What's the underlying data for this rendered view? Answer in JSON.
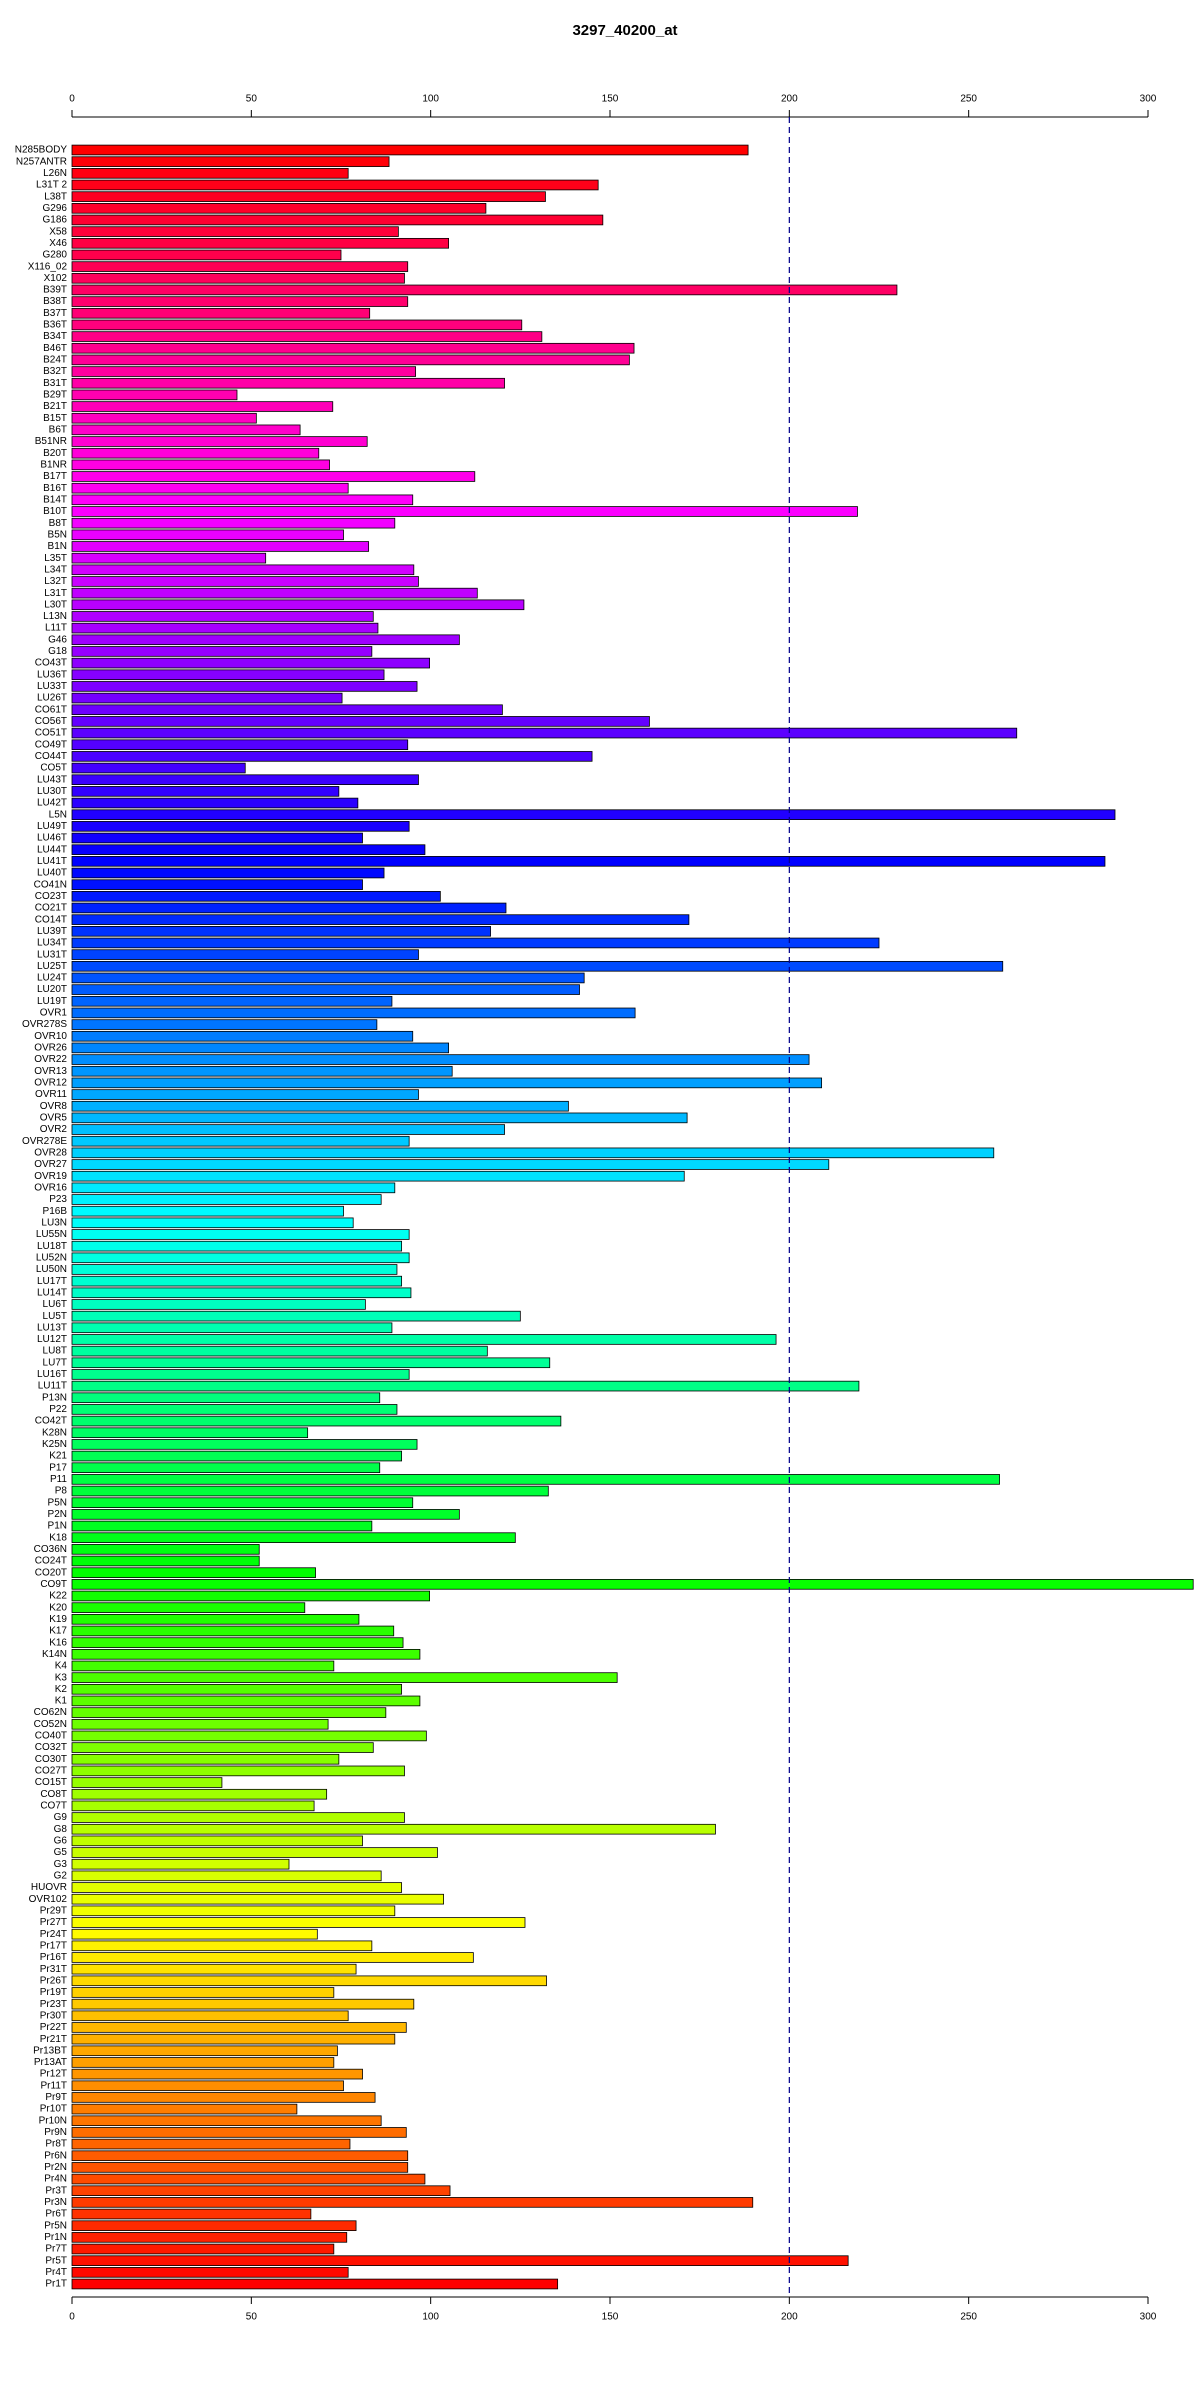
{
  "chart_data": {
    "type": "barh",
    "title": "3297_40200_at",
    "categories": [
      "N285BODY",
      "N257ANTR",
      "L26N",
      "L31T 2",
      "L38T",
      "G296",
      "G186",
      "X58",
      "X46",
      "G280",
      "X116_02",
      "X102",
      "B39T",
      "B38T",
      "B37T",
      "B36T",
      "B34T",
      "B46T",
      "B24T",
      "B32T",
      "B31T",
      "B29T",
      "B21T",
      "B15T",
      "B6T",
      "B51NR",
      "B20T",
      "B1NR",
      "B17T",
      "B16T",
      "B14T",
      "B10T",
      "B8T",
      "B5N",
      "B1N",
      "L35T",
      "L34T",
      "L32T",
      "L31T",
      "L30T",
      "L13N",
      "L11T",
      "G46",
      "G18",
      "CO43T",
      "LU36T",
      "LU33T",
      "LU26T",
      "CO61T",
      "CO56T",
      "CO51T",
      "CO49T",
      "CO44T",
      "CO5T",
      "LU43T",
      "LU30T",
      "LU42T",
      "L5N",
      "LU49T",
      "LU46T",
      "LU44T",
      "LU41T",
      "LU40T",
      "CO41N",
      "CO23T",
      "CO21T",
      "CO14T",
      "LU39T",
      "LU34T",
      "LU31T",
      "LU25T",
      "LU24T",
      "LU20T",
      "LU19T",
      "OVR1",
      "OVR278S",
      "OVR10",
      "OVR26",
      "OVR22",
      "OVR13",
      "OVR12",
      "OVR11",
      "OVR8",
      "OVR5",
      "OVR2",
      "OVR278E",
      "OVR28",
      "OVR27",
      "OVR19",
      "OVR16",
      "P23",
      "P16B",
      "LU3N",
      "LU55N",
      "LU18T",
      "LU52N",
      "LU50N",
      "LU17T",
      "LU14T",
      "LU6T",
      "LU5T",
      "LU13T",
      "LU12T",
      "LU8T",
      "LU7T",
      "LU16T",
      "LU11T",
      "P13N",
      "P22",
      "CO42T",
      "K28N",
      "K25N",
      "K21",
      "P17",
      "P11",
      "P8",
      "P5N",
      "P2N",
      "P1N",
      "K18",
      "CO36N",
      "CO24T",
      "CO20T",
      "CO9T",
      "K22",
      "K20",
      "K19",
      "K17",
      "K16",
      "K14N",
      "K4",
      "K3",
      "K2",
      "K1",
      "CO62N",
      "CO52N",
      "CO40T",
      "CO32T",
      "CO30T",
      "CO27T",
      "CO15T",
      "CO8T",
      "CO7T",
      "G9",
      "G8",
      "G6",
      "G5",
      "G3",
      "G2",
      "HUOVR",
      "OVR102",
      "Pr29T",
      "Pr27T",
      "Pr24T",
      "Pr17T",
      "Pr16T",
      "Pr31T",
      "Pr26T",
      "Pr19T",
      "Pr23T",
      "Pr30T",
      "Pr22T",
      "Pr21T",
      "Pr13BT",
      "Pr13AT",
      "Pr12T",
      "Pr11T",
      "Pr9T",
      "Pr10T",
      "Pr10N",
      "Pr9N",
      "Pr8T",
      "Pr6N",
      "Pr2N",
      "Pr4N",
      "Pr3T",
      "Pr3N",
      "Pr6T",
      "Pr5N",
      "Pr1N",
      "Pr7T",
      "Pr5T",
      "Pr4T",
      "Pr1T"
    ],
    "values": [
      188.5,
      88.4,
      77,
      146.7,
      132,
      115.4,
      148,
      91,
      105,
      75,
      93.6,
      92.7,
      230,
      93.6,
      83,
      125.4,
      131,
      156.7,
      155.4,
      95.8,
      120.6,
      46,
      72.7,
      51.4,
      63.6,
      82.3,
      68.8,
      71.8,
      112.3,
      77,
      95,
      219,
      90,
      75.7,
      82.7,
      54,
      95.3,
      96.6,
      113,
      126,
      84,
      85.3,
      108,
      83.6,
      99.7,
      87,
      96.2,
      75.3,
      120,
      161,
      263.4,
      93.6,
      145,
      48.3,
      96.6,
      74.4,
      79.7,
      290.8,
      94,
      81,
      98.4,
      288,
      87,
      81,
      102.7,
      121,
      172,
      116.7,
      225,
      96.6,
      259.5,
      142.8,
      141.5,
      89.2,
      157,
      85,
      95,
      105,
      205.5,
      106,
      209,
      96.6,
      138.4,
      171.5,
      120.6,
      94,
      257,
      211,
      170.7,
      90,
      86.2,
      75.7,
      78.4,
      94,
      91.9,
      94,
      90.6,
      91.9,
      94.5,
      81.8,
      125,
      89.2,
      196.3,
      115.8,
      133.2,
      94,
      219.4,
      85.8,
      90.6,
      136.3,
      65.7,
      96.2,
      91.9,
      85.8,
      258.6,
      132.8,
      95,
      108,
      83.6,
      123.6,
      52.2,
      52.2,
      67.9,
      312.6,
      99.7,
      64.9,
      80,
      89.7,
      92.3,
      97,
      73,
      152,
      91.9,
      97,
      87.5,
      71.4,
      98.8,
      84,
      74.4,
      92.7,
      41.8,
      71,
      67.5,
      92.7,
      179.4,
      81,
      101.9,
      60.5,
      86.2,
      91.9,
      103.6,
      90,
      126.3,
      68.4,
      83.6,
      111.9,
      79.2,
      132.3,
      73,
      95.3,
      77,
      93.2,
      90,
      74,
      73,
      81,
      75.7,
      84.5,
      62.7,
      86.2,
      93.2,
      77.5,
      93.6,
      93.6,
      98.4,
      105.4,
      189.8,
      66.6,
      79.2,
      76.6,
      73,
      216.4,
      77,
      135.4
    ],
    "color_stops": [
      "#ff0000",
      "#ff00ff",
      "#0000ff",
      "#00ffff",
      "#00ff00",
      "#ffff00",
      "#ff0000"
    ],
    "xlim": [
      0,
      300
    ],
    "xticks": [
      0,
      50,
      100,
      150,
      200,
      250,
      300
    ],
    "reference_line": 200,
    "reference_color": "#00008b"
  }
}
